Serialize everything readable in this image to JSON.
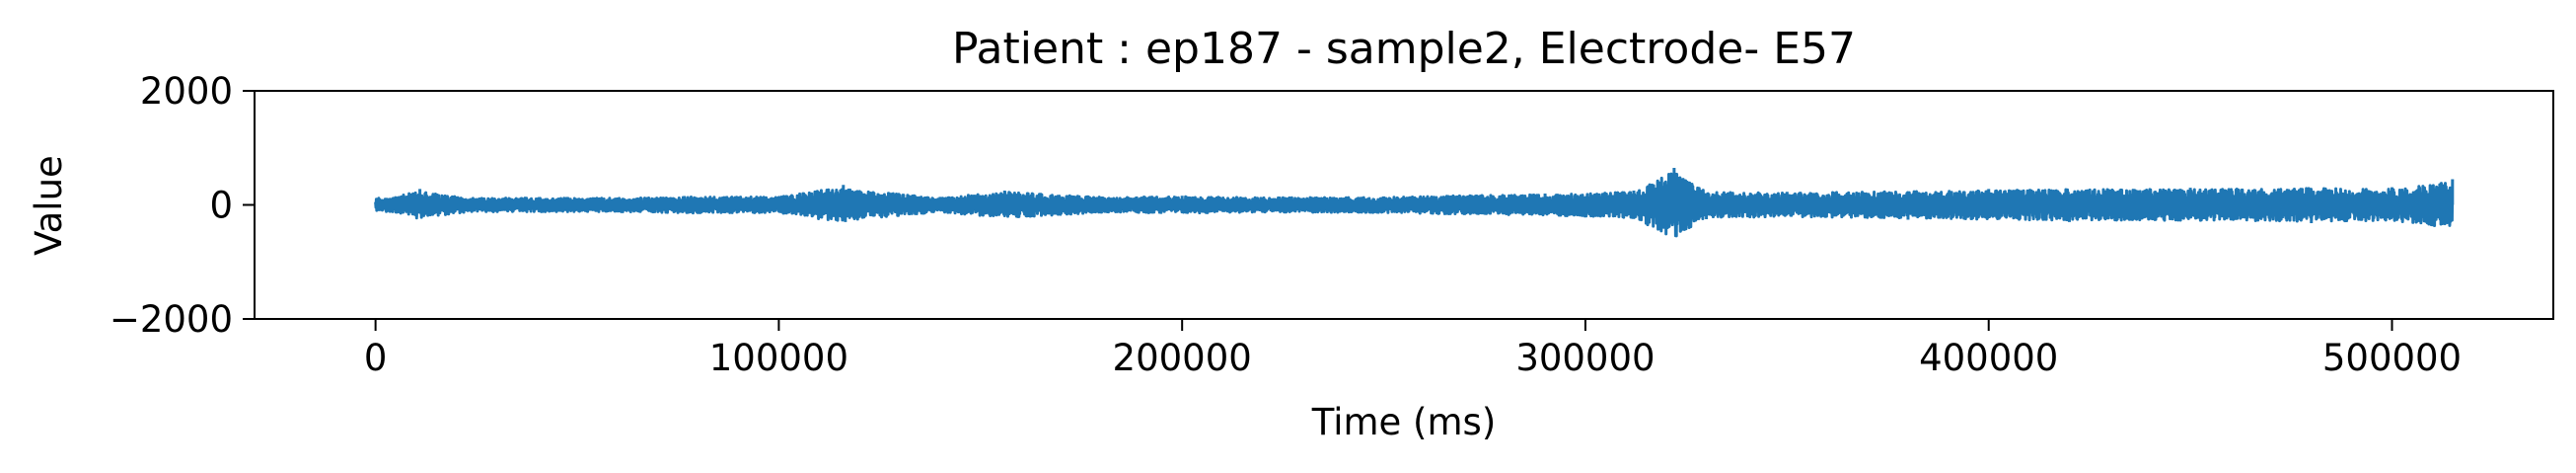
{
  "chart_data": {
    "type": "line",
    "title": "Patient : ep187 - sample2, Electrode- E57",
    "xlabel": "Time (ms)",
    "ylabel": "Value",
    "xlim": [
      -30000,
      540000
    ],
    "ylim": [
      -2000,
      2000
    ],
    "xticks": [
      0,
      100000,
      200000,
      300000,
      400000,
      500000
    ],
    "xtick_labels": [
      "0",
      "100000",
      "200000",
      "300000",
      "400000",
      "500000"
    ],
    "yticks": [
      -2000,
      0,
      2000
    ],
    "ytick_labels": [
      "−2000",
      "0",
      "2000"
    ],
    "grid": false,
    "legend": "none",
    "series": [
      {
        "color": "#1f77b4",
        "x_range": [
          0,
          515000
        ],
        "sample_points": [
          [
            0,
            0
          ],
          [
            5000,
            150
          ],
          [
            11000,
            280
          ],
          [
            18000,
            -180
          ],
          [
            25000,
            120
          ],
          [
            40000,
            -90
          ],
          [
            60000,
            130
          ],
          [
            80000,
            -160
          ],
          [
            100000,
            150
          ],
          [
            116000,
            350
          ],
          [
            116500,
            -300
          ],
          [
            140000,
            140
          ],
          [
            156000,
            250
          ],
          [
            180000,
            -150
          ],
          [
            200000,
            160
          ],
          [
            220000,
            -140
          ],
          [
            250000,
            150
          ],
          [
            270000,
            -180
          ],
          [
            290000,
            200
          ],
          [
            300000,
            -220
          ],
          [
            312000,
            250
          ],
          [
            322000,
            650
          ],
          [
            330000,
            -250
          ],
          [
            350000,
            230
          ],
          [
            380000,
            -260
          ],
          [
            400000,
            280
          ],
          [
            420000,
            -300
          ],
          [
            450000,
            300
          ],
          [
            480000,
            -320
          ],
          [
            500000,
            310
          ],
          [
            515000,
            450
          ]
        ],
        "typical_amplitude": 160,
        "peak_amplitude": 650
      }
    ]
  }
}
